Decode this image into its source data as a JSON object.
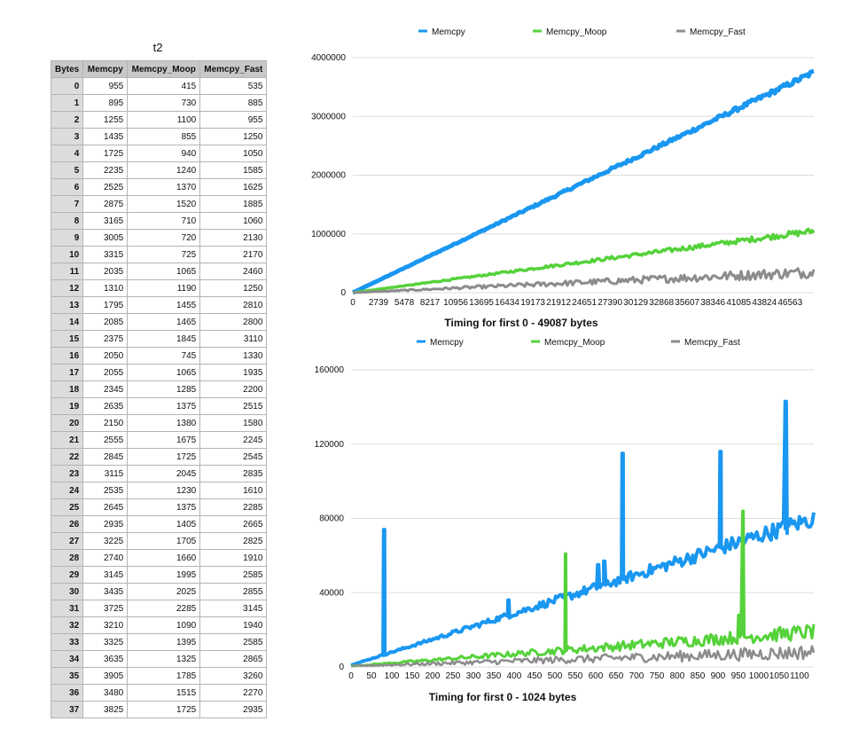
{
  "table": {
    "title": "t2",
    "headers": [
      "Bytes",
      "Memcpy",
      "Memcpy_Moop",
      "Memcpy_Fast"
    ],
    "rows": [
      [
        "0",
        "955",
        "415",
        "535"
      ],
      [
        "1",
        "895",
        "730",
        "885"
      ],
      [
        "2",
        "1255",
        "1100",
        "955"
      ],
      [
        "3",
        "1435",
        "855",
        "1250"
      ],
      [
        "4",
        "1725",
        "940",
        "1050"
      ],
      [
        "5",
        "2235",
        "1240",
        "1585"
      ],
      [
        "6",
        "2525",
        "1370",
        "1625"
      ],
      [
        "7",
        "2875",
        "1520",
        "1885"
      ],
      [
        "8",
        "3165",
        "710",
        "1060"
      ],
      [
        "9",
        "3005",
        "720",
        "2130"
      ],
      [
        "10",
        "3315",
        "725",
        "2170"
      ],
      [
        "11",
        "2035",
        "1065",
        "2460"
      ],
      [
        "12",
        "1310",
        "1190",
        "1250"
      ],
      [
        "13",
        "1795",
        "1455",
        "2810"
      ],
      [
        "14",
        "2085",
        "1465",
        "2800"
      ],
      [
        "15",
        "2375",
        "1845",
        "3110"
      ],
      [
        "16",
        "2050",
        "745",
        "1330"
      ],
      [
        "17",
        "2055",
        "1065",
        "1935"
      ],
      [
        "18",
        "2345",
        "1285",
        "2200"
      ],
      [
        "19",
        "2635",
        "1375",
        "2515"
      ],
      [
        "20",
        "2150",
        "1380",
        "1580"
      ],
      [
        "21",
        "2555",
        "1675",
        "2245"
      ],
      [
        "22",
        "2845",
        "1725",
        "2545"
      ],
      [
        "23",
        "3115",
        "2045",
        "2835"
      ],
      [
        "24",
        "2535",
        "1230",
        "1610"
      ],
      [
        "25",
        "2645",
        "1375",
        "2285"
      ],
      [
        "26",
        "2935",
        "1405",
        "2665"
      ],
      [
        "27",
        "3225",
        "1705",
        "2825"
      ],
      [
        "28",
        "2740",
        "1660",
        "1910"
      ],
      [
        "29",
        "3145",
        "1995",
        "2585"
      ],
      [
        "30",
        "3435",
        "2025",
        "2855"
      ],
      [
        "31",
        "3725",
        "2285",
        "3145"
      ],
      [
        "32",
        "3210",
        "1090",
        "1940"
      ],
      [
        "33",
        "3325",
        "1395",
        "2585"
      ],
      [
        "34",
        "3635",
        "1325",
        "2865"
      ],
      [
        "35",
        "3905",
        "1785",
        "3260"
      ],
      [
        "36",
        "3480",
        "1515",
        "2270"
      ],
      [
        "37",
        "3825",
        "1725",
        "2935"
      ]
    ]
  },
  "colors": {
    "memcpy": "#1a97f0",
    "moop": "#55d23a",
    "fast": "#8c8c8c",
    "grid": "#dddddd"
  },
  "chart_data": [
    {
      "type": "line",
      "title": "Timing for first 0 - 49087 bytes",
      "xlabel": "",
      "ylabel": "",
      "xlim": [
        0,
        49087
      ],
      "ylim": [
        0,
        4000000
      ],
      "yticks": [
        0,
        1000000,
        2000000,
        3000000,
        4000000
      ],
      "ytick_labels": [
        "0",
        "1000000",
        "2000000",
        "3000000",
        "4000000"
      ],
      "xticks": [
        0,
        2739,
        5478,
        8217,
        10956,
        13695,
        16434,
        19173,
        21912,
        24651,
        27390,
        30129,
        32868,
        35607,
        38346,
        41085,
        43824,
        46563
      ],
      "xtick_labels": [
        "0",
        "2739",
        "5478",
        "8217",
        "10956",
        "13695",
        "16434",
        "19173",
        "21912",
        "24651",
        "27390",
        "30129",
        "32868",
        "35607",
        "38346",
        "41085",
        "43824",
        "46563"
      ],
      "legend_position": "top",
      "grid": true,
      "series": [
        {
          "name": "Memcpy",
          "x": [
            0,
            49087
          ],
          "y": [
            0,
            3750000
          ]
        },
        {
          "name": "Memcpy_Moop",
          "x": [
            0,
            49087
          ],
          "y": [
            0,
            1050000
          ]
        },
        {
          "name": "Memcpy_Fast",
          "x": [
            0,
            49087
          ],
          "y": [
            0,
            350000
          ]
        }
      ]
    },
    {
      "type": "line",
      "title": "Timing for first 0 - 1024 bytes",
      "xlabel": "",
      "ylabel": "",
      "xlim": [
        0,
        1135
      ],
      "ylim": [
        0,
        160000
      ],
      "yticks": [
        0,
        40000,
        80000,
        120000,
        160000
      ],
      "ytick_labels": [
        "0",
        "40000",
        "80000",
        "120000",
        "160000"
      ],
      "xticks": [
        0,
        50,
        100,
        150,
        200,
        250,
        300,
        350,
        400,
        450,
        500,
        550,
        600,
        650,
        700,
        750,
        800,
        850,
        900,
        950,
        1000,
        1050,
        1100
      ],
      "xtick_labels": [
        "0",
        "50",
        "100",
        "150",
        "200",
        "250",
        "300",
        "350",
        "400",
        "450",
        "500",
        "550",
        "600",
        "650",
        "700",
        "750",
        "800",
        "850",
        "900",
        "950",
        "1000",
        "1050",
        "1100"
      ],
      "legend_position": "top",
      "grid": true,
      "series": [
        {
          "name": "Memcpy",
          "x": [
            0,
            1135
          ],
          "y": [
            1000,
            80000
          ],
          "spikes": [
            [
              80,
              74000
            ],
            [
              385,
              36000
            ],
            [
              605,
              55000
            ],
            [
              620,
              57000
            ],
            [
              665,
              115000
            ],
            [
              905,
              116000
            ],
            [
              1065,
              143000
            ]
          ]
        },
        {
          "name": "Memcpy_Moop",
          "x": [
            0,
            1135
          ],
          "y": [
            500,
            19000
          ],
          "spikes": [
            [
              525,
              61000
            ],
            [
              950,
              28000
            ],
            [
              960,
              84000
            ]
          ]
        },
        {
          "name": "Memcpy_Fast",
          "x": [
            0,
            1135
          ],
          "y": [
            500,
            8000
          ],
          "spikes": []
        }
      ]
    }
  ]
}
